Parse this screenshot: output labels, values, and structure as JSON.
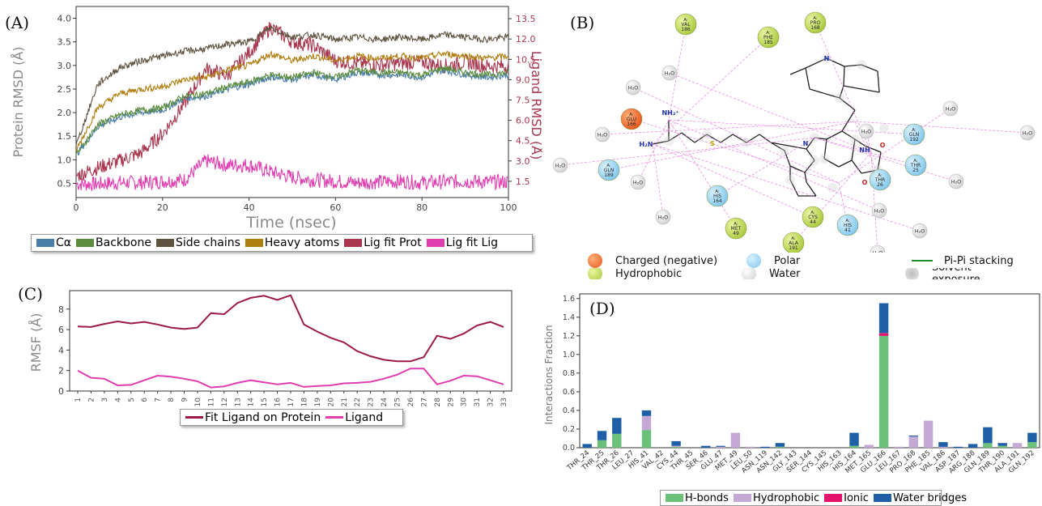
{
  "panels": {
    "a_label": "(A)",
    "b_label": "(B)",
    "c_label": "(C)",
    "d_label": "(D)"
  },
  "legend_a": [
    {
      "label": "Cα",
      "color": "#4a7da8"
    },
    {
      "label": "Backbone",
      "color": "#5b8c3c"
    },
    {
      "label": "Side chains",
      "color": "#5e5340"
    },
    {
      "label": "Heavy atoms",
      "color": "#b07d10"
    },
    {
      "label": "Lig fit Prot",
      "color": "#a8374f"
    },
    {
      "label": "Lig fit Lig",
      "color": "#e03db0"
    }
  ],
  "legend_b": {
    "charged": "Charged (negative)",
    "polar": "Polar",
    "pipi": "Pi-Pi stacking",
    "hydrophobic": "Hydrophobic",
    "water": "Water",
    "solvent": "Solvent exposure"
  },
  "legend_c": [
    {
      "label": "Fit Ligand on Protein",
      "color": "#9b1b46"
    },
    {
      "label": "Ligand",
      "color": "#e03db0"
    }
  ],
  "legend_d": [
    {
      "label": "H-bonds",
      "color": "#6cc17a"
    },
    {
      "label": "Hydrophobic",
      "color": "#c3a9d3"
    },
    {
      "label": "Ionic",
      "color": "#e3126c"
    },
    {
      "label": "Water bridges",
      "color": "#1f5fa8"
    }
  ],
  "diagram_b": {
    "residues": [
      {
        "label": "A: VAL 186",
        "kind": "hydrophobic"
      },
      {
        "label": "A: PHE 185",
        "kind": "hydrophobic"
      },
      {
        "label": "A: PRO 168",
        "kind": "hydrophobic"
      },
      {
        "label": "A: GLU 166",
        "kind": "charged"
      },
      {
        "label": "A: GLN 189",
        "kind": "polar"
      },
      {
        "label": "A: HIS 164",
        "kind": "polar"
      },
      {
        "label": "A: MET 49",
        "kind": "hydrophobic"
      },
      {
        "label": "A: CYS 44",
        "kind": "hydrophobic"
      },
      {
        "label": "A: ALA 191",
        "kind": "hydrophobic"
      },
      {
        "label": "A: HIS 41",
        "kind": "polar"
      },
      {
        "label": "A: THR 26",
        "kind": "polar"
      },
      {
        "label": "A: THR 25",
        "kind": "polar"
      },
      {
        "label": "A: GLN 192",
        "kind": "polar"
      }
    ],
    "water_label": "H₂O",
    "atoms": [
      "NH₂⁺",
      "H₂N",
      "N",
      "N",
      "NH",
      "O",
      "O",
      "S"
    ]
  },
  "chart_data": [
    {
      "type": "line",
      "title": "",
      "xlabel": "Time (nsec)",
      "ylabel": "Protein RMSD (Å)",
      "y2label": "Ligand RMSD (Å)",
      "xlim": [
        0,
        100
      ],
      "ylim": [
        0.2,
        4.25
      ],
      "y2lim": [
        0.3,
        14.4
      ],
      "xticks": [
        0,
        20,
        40,
        60,
        80,
        100
      ],
      "yticks": [
        0.5,
        1.0,
        1.5,
        2.0,
        2.5,
        3.0,
        3.5,
        4.0
      ],
      "y2ticks": [
        "1.5",
        "3.0",
        "4.5",
        "6.0",
        "7.5",
        "9.0",
        "10.5",
        "12.0",
        "13.5"
      ],
      "x": [
        0,
        5,
        10,
        15,
        20,
        25,
        30,
        35,
        40,
        45,
        50,
        55,
        60,
        65,
        70,
        75,
        80,
        85,
        90,
        95,
        100
      ],
      "series": [
        {
          "name": "Cα",
          "axis": "left",
          "values": [
            1.1,
            1.7,
            1.9,
            2.0,
            2.05,
            2.3,
            2.35,
            2.5,
            2.6,
            2.75,
            2.7,
            2.8,
            2.7,
            2.85,
            2.8,
            2.8,
            2.75,
            2.9,
            2.8,
            2.75,
            2.8
          ]
        },
        {
          "name": "Backbone",
          "axis": "left",
          "values": [
            1.1,
            1.75,
            1.95,
            2.05,
            2.1,
            2.35,
            2.4,
            2.55,
            2.65,
            2.8,
            2.75,
            2.85,
            2.75,
            2.9,
            2.85,
            2.85,
            2.8,
            2.95,
            2.85,
            2.8,
            2.85
          ]
        },
        {
          "name": "Side chains",
          "axis": "left",
          "values": [
            1.3,
            2.6,
            2.95,
            3.1,
            3.2,
            3.3,
            3.35,
            3.45,
            3.5,
            3.8,
            3.6,
            3.65,
            3.55,
            3.6,
            3.55,
            3.6,
            3.55,
            3.65,
            3.6,
            3.55,
            3.6
          ]
        },
        {
          "name": "Heavy atoms",
          "axis": "left",
          "values": [
            1.2,
            2.1,
            2.4,
            2.5,
            2.55,
            2.7,
            2.75,
            2.9,
            3.0,
            3.25,
            3.1,
            3.2,
            3.1,
            3.2,
            3.15,
            3.2,
            3.15,
            3.25,
            3.2,
            3.15,
            3.2
          ]
        },
        {
          "name": "Lig fit Prot",
          "axis": "right",
          "values": [
            1.9,
            2.5,
            3.0,
            3.6,
            5.0,
            7.2,
            9.8,
            9.3,
            11.0,
            12.9,
            11.8,
            11.5,
            10.4,
            10.2,
            10.1,
            10.2,
            10.3,
            10.0,
            10.3,
            10.0,
            10.0
          ]
        },
        {
          "name": "Lig fit Lig",
          "axis": "right",
          "values": [
            1.3,
            1.3,
            1.4,
            1.4,
            1.5,
            1.6,
            3.0,
            2.7,
            2.7,
            2.2,
            1.8,
            1.6,
            1.5,
            1.4,
            1.45,
            1.5,
            1.4,
            1.45,
            1.5,
            1.45,
            1.45
          ]
        }
      ]
    },
    {
      "type": "line",
      "title": "",
      "xlabel": "",
      "ylabel": "RMSF (Å)",
      "ylim": [
        0,
        9.8
      ],
      "yticks": [
        0,
        2,
        4,
        6,
        8
      ],
      "categories": [
        "1",
        "2",
        "3",
        "4",
        "5",
        "6",
        "7",
        "8",
        "9",
        "10",
        "11",
        "12",
        "13",
        "14",
        "15",
        "16",
        "17",
        "18",
        "19",
        "20",
        "21",
        "22",
        "23",
        "24",
        "25",
        "26",
        "27",
        "28",
        "29",
        "30",
        "31",
        "32",
        "33"
      ],
      "series": [
        {
          "name": "Fit Ligand on Protein",
          "values": [
            6.3,
            6.25,
            6.55,
            6.8,
            6.6,
            6.75,
            6.5,
            6.2,
            6.05,
            6.2,
            7.6,
            7.5,
            8.6,
            9.1,
            9.3,
            8.9,
            9.35,
            6.5,
            5.8,
            5.2,
            4.75,
            3.9,
            3.4,
            3.05,
            2.9,
            2.9,
            3.3,
            5.4,
            5.1,
            5.6,
            6.4,
            6.75,
            6.25
          ]
        },
        {
          "name": "Ligand",
          "values": [
            2.0,
            1.3,
            1.2,
            0.55,
            0.6,
            1.05,
            1.5,
            1.4,
            1.2,
            0.95,
            0.35,
            0.45,
            0.8,
            1.05,
            0.85,
            0.65,
            0.8,
            0.4,
            0.5,
            0.55,
            0.75,
            0.8,
            0.9,
            1.2,
            1.6,
            2.2,
            2.2,
            0.65,
            1.0,
            1.5,
            1.45,
            1.05,
            0.65
          ]
        }
      ]
    },
    {
      "type": "bar",
      "title": "",
      "xlabel": "",
      "ylabel": "Interactions Fraction",
      "ylim": [
        0,
        1.65
      ],
      "yticks": [
        "0.0",
        "0.2",
        "0.4",
        "0.6",
        "0.8",
        "1.0",
        "1.2",
        "1.4",
        "1.6"
      ],
      "stacked": true,
      "categories": [
        "THR_24",
        "THR_25",
        "THR_26",
        "LEU_27",
        "HIS_41",
        "VAL_42",
        "CYS_44",
        "THR_45",
        "SER_46",
        "GLU_47",
        "MET_49",
        "LEU_50",
        "ASN_119",
        "ASN_142",
        "GLY_143",
        "SER_144",
        "CYS_145",
        "HIS_163",
        "HIS_164",
        "MET_165",
        "GLU_166",
        "LEU_167",
        "PRO_168",
        "PHE_185",
        "VAL_186",
        "ASP_187",
        "ARG_188",
        "GLN_189",
        "THR_190",
        "ALA_191",
        "GLN_192"
      ],
      "series": [
        {
          "name": "H-bonds",
          "values": [
            0,
            0.08,
            0.15,
            0,
            0.19,
            0,
            0.01,
            0,
            0,
            0,
            0,
            0,
            0,
            0.01,
            0,
            0,
            0,
            0,
            0.02,
            0,
            1.2,
            0,
            0,
            0,
            0,
            0,
            0,
            0.05,
            0.02,
            0,
            0.06
          ]
        },
        {
          "name": "Hydrophobic",
          "values": [
            0,
            0,
            0,
            0,
            0.15,
            0,
            0.01,
            0,
            0,
            0.01,
            0.16,
            0.01,
            0,
            0,
            0,
            0,
            0,
            0,
            0,
            0.03,
            0,
            0.01,
            0.12,
            0.29,
            0.01,
            0,
            0,
            0,
            0,
            0.05,
            0
          ]
        },
        {
          "name": "Ionic",
          "values": [
            0,
            0,
            0,
            0,
            0,
            0,
            0,
            0,
            0,
            0,
            0,
            0,
            0,
            0,
            0,
            0,
            0,
            0,
            0,
            0,
            0.03,
            0,
            0,
            0,
            0,
            0,
            0,
            0,
            0,
            0,
            0
          ]
        },
        {
          "name": "Water bridges",
          "values": [
            0.04,
            0.1,
            0.17,
            0,
            0.06,
            0,
            0.05,
            0,
            0.02,
            0.01,
            0,
            0,
            0.01,
            0.04,
            0,
            0,
            0,
            0,
            0.14,
            0,
            0.32,
            0,
            0.01,
            0,
            0.05,
            0.01,
            0.04,
            0.17,
            0.03,
            0,
            0.1
          ]
        }
      ]
    }
  ]
}
